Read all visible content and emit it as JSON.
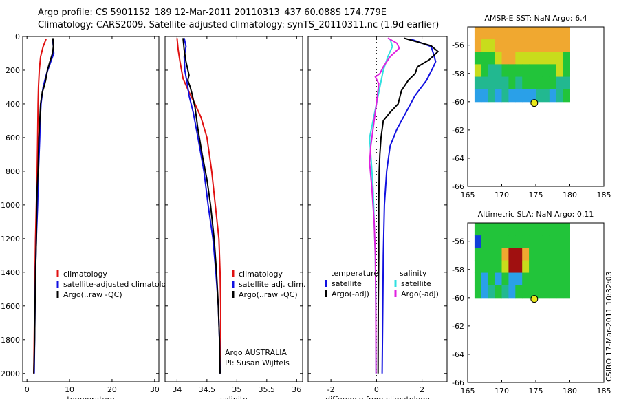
{
  "header": {
    "line1": "Argo profile: CS 5901152_189 12-Mar-2011 20110313_437 60.088S 174.779E",
    "line2": "Climatology: CARS2009. Satellite-adjusted climatology: synTS_20110311.nc (1.9d earlier)"
  },
  "side_label": "CSIRO 17-Mar-2011 10:32:03",
  "colors": {
    "red": "#e01010",
    "blue": "#1010e0",
    "black": "#000000",
    "cyan": "#30e0e0",
    "magenta": "#e020e0",
    "marker": "#e8e81a"
  },
  "chart_data": [
    {
      "id": "temperature",
      "type": "line",
      "xlabel": "temperature",
      "ylabel": "",
      "xlim": [
        -1,
        31
      ],
      "ylim": [
        2050,
        0
      ],
      "y_reversed": true,
      "xticks": [
        0,
        10,
        20,
        30
      ],
      "yticks": [
        0,
        200,
        400,
        600,
        800,
        1000,
        1200,
        1400,
        1600,
        1800,
        2000
      ],
      "legend": {
        "placement": "lower-middle",
        "entries": [
          "climatology",
          "satellite-adjusted climatology",
          "Argo(..raw -QC)"
        ]
      },
      "series": [
        {
          "name": "climatology",
          "color": "red",
          "points": [
            [
              4.5,
              15
            ],
            [
              3.8,
              60
            ],
            [
              3.2,
              120
            ],
            [
              2.9,
              200
            ],
            [
              2.7,
              300
            ],
            [
              2.6,
              400
            ],
            [
              2.5,
              600
            ],
            [
              2.4,
              800
            ],
            [
              2.2,
              1000
            ],
            [
              2.0,
              1200
            ],
            [
              1.9,
              1400
            ],
            [
              1.8,
              1600
            ],
            [
              1.7,
              1800
            ],
            [
              1.6,
              2000
            ]
          ]
        },
        {
          "name": "satellite-adjusted climatology",
          "color": "blue",
          "points": [
            [
              6.0,
              15
            ],
            [
              6.2,
              60
            ],
            [
              6.3,
              100
            ],
            [
              5.6,
              150
            ],
            [
              4.6,
              220
            ],
            [
              3.8,
              300
            ],
            [
              3.3,
              400
            ],
            [
              3.1,
              500
            ],
            [
              3.0,
              600
            ],
            [
              2.7,
              800
            ],
            [
              2.5,
              1000
            ],
            [
              2.2,
              1200
            ],
            [
              2.0,
              1400
            ],
            [
              1.9,
              1600
            ],
            [
              1.8,
              1800
            ],
            [
              1.7,
              2000
            ]
          ]
        },
        {
          "name": "Argo(..raw -QC)",
          "color": "black",
          "points": [
            [
              6.1,
              10
            ],
            [
              6.2,
              60
            ],
            [
              6.0,
              100
            ],
            [
              5.5,
              140
            ],
            [
              4.8,
              200
            ],
            [
              4.4,
              260
            ],
            [
              4.0,
              300
            ],
            [
              3.6,
              330
            ],
            [
              3.2,
              400
            ],
            [
              3.0,
              500
            ],
            [
              2.8,
              600
            ],
            [
              2.7,
              700
            ],
            [
              2.6,
              800
            ],
            [
              2.4,
              900
            ],
            [
              2.3,
              1000
            ],
            [
              2.2,
              1200
            ],
            [
              2.0,
              1400
            ],
            [
              1.9,
              1600
            ],
            [
              1.8,
              1800
            ],
            [
              1.7,
              1900
            ],
            [
              1.6,
              2000
            ]
          ]
        }
      ]
    },
    {
      "id": "salinity",
      "type": "line",
      "xlabel": "salinity",
      "ylabel": "",
      "xlim": [
        33.8,
        36.1
      ],
      "ylim": [
        2050,
        0
      ],
      "y_reversed": true,
      "xticks": [
        34,
        34.5,
        35,
        35.5,
        36
      ],
      "yticks": [
        0,
        200,
        400,
        600,
        800,
        1000,
        1200,
        1400,
        1600,
        1800,
        2000
      ],
      "legend": {
        "placement": "lower-right",
        "entries": [
          "climatology",
          "satellite adj. clim.",
          "Argo(..raw -QC)"
        ]
      },
      "annotations": [
        "Argo AUSTRALIA",
        "PI: Susan Wijffels"
      ],
      "series": [
        {
          "name": "climatology",
          "color": "red",
          "points": [
            [
              34.0,
              10
            ],
            [
              34.02,
              80
            ],
            [
              34.05,
              150
            ],
            [
              34.1,
              250
            ],
            [
              34.2,
              330
            ],
            [
              34.3,
              400
            ],
            [
              34.4,
              480
            ],
            [
              34.5,
              600
            ],
            [
              34.58,
              800
            ],
            [
              34.64,
              1000
            ],
            [
              34.7,
              1200
            ],
            [
              34.72,
              1400
            ],
            [
              34.73,
              1600
            ],
            [
              34.73,
              1800
            ],
            [
              34.73,
              2000
            ]
          ]
        },
        {
          "name": "satellite adj. clim.",
          "color": "blue",
          "points": [
            [
              34.12,
              10
            ],
            [
              34.15,
              60
            ],
            [
              34.12,
              120
            ],
            [
              34.13,
              200
            ],
            [
              34.17,
              280
            ],
            [
              34.2,
              350
            ],
            [
              34.27,
              450
            ],
            [
              34.35,
              600
            ],
            [
              34.45,
              800
            ],
            [
              34.52,
              1000
            ],
            [
              34.6,
              1200
            ],
            [
              34.65,
              1400
            ],
            [
              34.69,
              1600
            ],
            [
              34.71,
              1800
            ],
            [
              34.72,
              2000
            ]
          ]
        },
        {
          "name": "Argo(..raw -QC)",
          "color": "black",
          "points": [
            [
              34.1,
              10
            ],
            [
              34.12,
              80
            ],
            [
              34.15,
              150
            ],
            [
              34.2,
              230
            ],
            [
              34.18,
              260
            ],
            [
              34.22,
              300
            ],
            [
              34.25,
              340
            ],
            [
              34.3,
              420
            ],
            [
              34.35,
              550
            ],
            [
              34.42,
              700
            ],
            [
              34.5,
              850
            ],
            [
              34.56,
              1000
            ],
            [
              34.62,
              1200
            ],
            [
              34.66,
              1400
            ],
            [
              34.69,
              1600
            ],
            [
              34.71,
              1800
            ],
            [
              34.72,
              2000
            ]
          ]
        }
      ]
    },
    {
      "id": "difference",
      "type": "line",
      "xlabel": "difference from climatology",
      "ylabel": "",
      "xlim": [
        -3,
        3.1
      ],
      "ylim": [
        2050,
        0
      ],
      "y_reversed": true,
      "xticks": [
        -2,
        0,
        2
      ],
      "yticks": [
        0,
        200,
        400,
        600,
        800,
        1000,
        1200,
        1400,
        1600,
        1800,
        2000
      ],
      "zero_line": "dotted",
      "legend": {
        "placement": "lower-middle",
        "temperature_header": "temperature",
        "salinity_header": "salinity",
        "entries": [
          "satellite",
          "Argo(-adj)",
          "satellite",
          "Argo(-adj)"
        ]
      },
      "series": [
        {
          "name": "temperature satellite",
          "color": "blue",
          "points": [
            [
              1.5,
              15
            ],
            [
              2.4,
              60
            ],
            [
              2.5,
              100
            ],
            [
              2.6,
              150
            ],
            [
              2.5,
              180
            ],
            [
              2.2,
              260
            ],
            [
              1.7,
              350
            ],
            [
              1.3,
              450
            ],
            [
              0.9,
              550
            ],
            [
              0.6,
              650
            ],
            [
              0.45,
              800
            ],
            [
              0.35,
              1000
            ],
            [
              0.3,
              1300
            ],
            [
              0.28,
              1600
            ],
            [
              0.25,
              2000
            ]
          ]
        },
        {
          "name": "temperature Argo(-adj)",
          "color": "black",
          "points": [
            [
              1.2,
              10
            ],
            [
              2.4,
              55
            ],
            [
              2.7,
              90
            ],
            [
              2.3,
              140
            ],
            [
              1.8,
              180
            ],
            [
              1.7,
              220
            ],
            [
              1.4,
              260
            ],
            [
              1.1,
              320
            ],
            [
              0.95,
              400
            ],
            [
              0.6,
              450
            ],
            [
              0.3,
              500
            ],
            [
              0.2,
              600
            ],
            [
              0.15,
              700
            ],
            [
              0.12,
              800
            ],
            [
              0.1,
              1000
            ],
            [
              0.1,
              1300
            ],
            [
              0.08,
              1600
            ],
            [
              0.07,
              2000
            ]
          ]
        },
        {
          "name": "salinity satellite",
          "color": "cyan",
          "points": [
            [
              0.6,
              15
            ],
            [
              0.7,
              60
            ],
            [
              0.5,
              120
            ],
            [
              0.3,
              200
            ],
            [
              0.15,
              300
            ],
            [
              0.0,
              400
            ],
            [
              -0.15,
              500
            ],
            [
              -0.3,
              600
            ],
            [
              -0.25,
              700
            ],
            [
              -0.15,
              900
            ],
            [
              -0.1,
              1100
            ],
            [
              -0.05,
              1300
            ],
            [
              -0.03,
              1600
            ],
            [
              -0.02,
              2000
            ]
          ]
        },
        {
          "name": "salinity Argo(-adj)",
          "color": "magenta",
          "points": [
            [
              0.5,
              10
            ],
            [
              0.9,
              40
            ],
            [
              1.0,
              70
            ],
            [
              0.6,
              120
            ],
            [
              0.3,
              180
            ],
            [
              0.15,
              220
            ],
            [
              -0.05,
              240
            ],
            [
              0.1,
              280
            ],
            [
              0.0,
              400
            ],
            [
              -0.1,
              500
            ],
            [
              -0.25,
              650
            ],
            [
              -0.3,
              750
            ],
            [
              -0.2,
              900
            ],
            [
              -0.1,
              1100
            ],
            [
              -0.05,
              1300
            ],
            [
              -0.03,
              1600
            ],
            [
              -0.02,
              2000
            ]
          ]
        }
      ]
    },
    {
      "id": "amsre-sst",
      "type": "heatmap",
      "title": "AMSR-E SST: NaN Argo: 6.4",
      "xlim": [
        165,
        185
      ],
      "ylim": [
        -66,
        -54.7
      ],
      "xticks": [
        165,
        170,
        175,
        180,
        185
      ],
      "yticks": [
        -56,
        -58,
        -60,
        -62,
        -64,
        -66
      ],
      "data_extent": {
        "x": [
          166,
          180
        ],
        "y": [
          -60,
          -54.7
        ]
      },
      "grid": [
        [
          5,
          5,
          5,
          5,
          5,
          5,
          5,
          5,
          5,
          5,
          5,
          5,
          5,
          5
        ],
        [
          5,
          4,
          4,
          5,
          5,
          5,
          5,
          5,
          5,
          5,
          5,
          5,
          5,
          5
        ],
        [
          3,
          3,
          3,
          4,
          5,
          5,
          4,
          4,
          4,
          4,
          4,
          4,
          4,
          3
        ],
        [
          4,
          3,
          2,
          2,
          3,
          3,
          3,
          3,
          3,
          3,
          3,
          3,
          4,
          3
        ],
        [
          2,
          2,
          2,
          2,
          2,
          3,
          2,
          3,
          3,
          3,
          3,
          3,
          2,
          2
        ],
        [
          1,
          1,
          2,
          1,
          2,
          1,
          1,
          1,
          1,
          2,
          2,
          1,
          2,
          3
        ]
      ],
      "marker": {
        "x": 174.779,
        "y": -60.088
      }
    },
    {
      "id": "altimetric-sla",
      "type": "heatmap",
      "title": "Altimetric SLA: NaN Argo: 0.11",
      "xlim": [
        165,
        185
      ],
      "ylim": [
        -66,
        -54.7
      ],
      "xticks": [
        165,
        170,
        175,
        180,
        185
      ],
      "yticks": [
        -56,
        -58,
        -60,
        -62,
        -64,
        -66
      ],
      "data_extent": {
        "x": [
          166,
          180
        ],
        "y": [
          -60,
          -54.7
        ]
      },
      "grid": [
        [
          3,
          3,
          3,
          3,
          3,
          3,
          3,
          3,
          3,
          3,
          3,
          3,
          3,
          3
        ],
        [
          0,
          3,
          3,
          3,
          3,
          3,
          3,
          3,
          3,
          3,
          3,
          3,
          3,
          3
        ],
        [
          3,
          3,
          3,
          3,
          5,
          6,
          6,
          5,
          3,
          3,
          3,
          3,
          3,
          3
        ],
        [
          3,
          3,
          3,
          3,
          4,
          6,
          6,
          4,
          3,
          3,
          3,
          3,
          3,
          3
        ],
        [
          3,
          1,
          3,
          1,
          3,
          1,
          1,
          3,
          3,
          3,
          3,
          3,
          3,
          3
        ],
        [
          3,
          1,
          2,
          3,
          2,
          1,
          3,
          3,
          3,
          3,
          3,
          3,
          3,
          3
        ]
      ],
      "marker": {
        "x": 174.779,
        "y": -60.088
      }
    }
  ]
}
